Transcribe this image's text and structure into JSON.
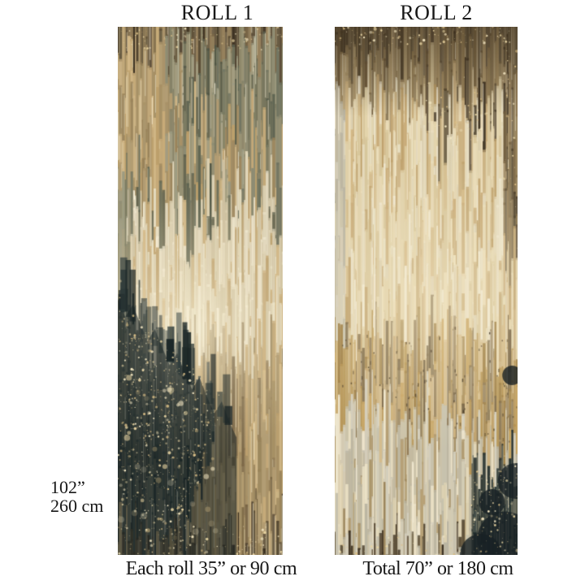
{
  "figure": {
    "background_color": "#ffffff",
    "text_color": "#181818"
  },
  "rolls": [
    {
      "title": "ROLL 1",
      "caption": "Each roll 35” or 90 cm"
    },
    {
      "title": "ROLL 2",
      "caption": "Total 70” or 180 cm"
    }
  ],
  "height_label": {
    "inches": "102”",
    "centimeters": "260 cm"
  },
  "artwork": {
    "palettes": {
      "cream": [
        "#e8dfc4",
        "#efe7d0",
        "#ddd2b4"
      ],
      "creamGold": [
        "#e3d4ac",
        "#d8c69a",
        "#eadcb8"
      ],
      "gold": [
        "#c8ab78",
        "#bd9f6a",
        "#d3b886"
      ],
      "tan": [
        "#a68f64",
        "#99835a",
        "#b29b70"
      ],
      "brown": [
        "#7e6a48",
        "#6d5a3c",
        "#8d7753"
      ],
      "darkBrown": [
        "#4a3e2a",
        "#3b3021",
        "#574936"
      ],
      "olive": [
        "#8c8b72",
        "#7a7a62",
        "#9c9b82"
      ],
      "darkOlive": [
        "#5e6452",
        "#4e5444",
        "#6d7260"
      ],
      "palegrey": [
        "#c6c1ae",
        "#d2cdbc",
        "#b9b4a2"
      ],
      "dark": [
        "#24302f",
        "#1a2526",
        "#2f3c3b"
      ],
      "amber": [
        "#b3904f",
        "#c5a260",
        "#9c7c42"
      ],
      "highlight": [
        "#f6eed6",
        "#fff8e2",
        "#efe3c2"
      ],
      "speckle": [
        "#e9d5a2",
        "#f4e7c2",
        "#d9bd85"
      ]
    }
  }
}
